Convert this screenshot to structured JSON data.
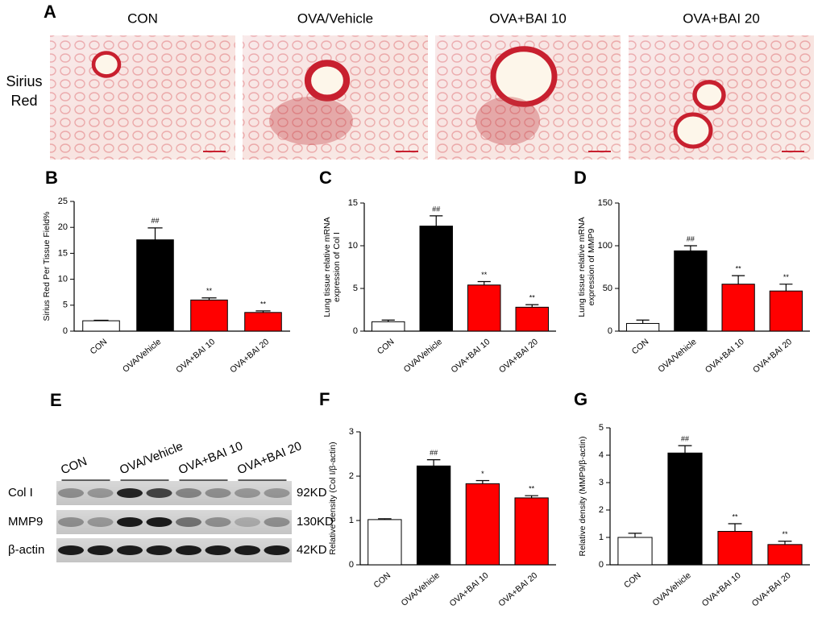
{
  "panel_a": {
    "label": "A",
    "stain": [
      "Sirius",
      "Red"
    ],
    "titles": [
      "CON",
      "OVA/Vehicle",
      "OVA+BAI 10",
      "OVA+BAI 20"
    ]
  },
  "panel_e": {
    "label": "E",
    "groups": [
      "CON",
      "OVA/Vehicle",
      "OVA+BAI 10",
      "OVA+BAI 20"
    ],
    "bands": [
      {
        "name": "Col I",
        "size": "92KD"
      },
      {
        "name": "MMP9",
        "size": "130KD"
      },
      {
        "name": "β-actin",
        "size": "42KD"
      }
    ]
  },
  "chart_data": [
    {
      "type": "bar",
      "panel": "B",
      "ylabel": "Sirius Red Per Tissue Field%",
      "categories": [
        "CON",
        "OVA/Vehicle",
        "OVA+BAI 10",
        "OVA+BAI 20"
      ],
      "values": [
        2.0,
        17.6,
        6.0,
        3.6
      ],
      "errors": [
        0.1,
        2.3,
        0.4,
        0.3
      ],
      "annotations": [
        null,
        "##",
        "**",
        "**"
      ],
      "colors": [
        "#ffffff",
        "#000000",
        "#ff0000",
        "#ff0000"
      ],
      "ylim": [
        0,
        25
      ],
      "yticks": [
        0,
        5,
        10,
        15,
        20,
        25
      ]
    },
    {
      "type": "bar",
      "panel": "C",
      "ylabel": [
        "Lung tissue relative mRNA",
        "expression of Col I"
      ],
      "categories": [
        "CON",
        "OVA/Vehicle",
        "OVA+BAI 10",
        "OVA+BAI 20"
      ],
      "values": [
        1.1,
        12.3,
        5.4,
        2.8
      ],
      "errors": [
        0.2,
        1.2,
        0.4,
        0.3
      ],
      "annotations": [
        null,
        "##",
        "**",
        "**"
      ],
      "colors": [
        "#ffffff",
        "#000000",
        "#ff0000",
        "#ff0000"
      ],
      "ylim": [
        0,
        15
      ],
      "yticks": [
        0,
        5,
        10,
        15
      ]
    },
    {
      "type": "bar",
      "panel": "D",
      "ylabel": [
        "Lung tissue relative mRNA",
        "expression of MMP9"
      ],
      "categories": [
        "CON",
        "OVA/Vehicle",
        "OVA+BAI 10",
        "OVA+BAI 20"
      ],
      "values": [
        9,
        94,
        55,
        47
      ],
      "errors": [
        4,
        6,
        10,
        8
      ],
      "annotations": [
        null,
        "##",
        "**",
        "**"
      ],
      "colors": [
        "#ffffff",
        "#000000",
        "#ff0000",
        "#ff0000"
      ],
      "ylim": [
        0,
        150
      ],
      "yticks": [
        0,
        50,
        100,
        150
      ]
    },
    {
      "type": "bar",
      "panel": "F",
      "ylabel": "Relative density (Col I/β-actin)",
      "categories": [
        "CON",
        "OVA/Vehicle",
        "OVA+BAI 10",
        "OVA+BAI 20"
      ],
      "values": [
        1.02,
        2.23,
        1.83,
        1.51
      ],
      "errors": [
        0.02,
        0.14,
        0.07,
        0.05
      ],
      "annotations": [
        null,
        "##",
        "*",
        "**"
      ],
      "colors": [
        "#ffffff",
        "#000000",
        "#ff0000",
        "#ff0000"
      ],
      "ylim": [
        0,
        3
      ],
      "yticks": [
        0,
        1,
        2,
        3
      ]
    },
    {
      "type": "bar",
      "panel": "G",
      "ylabel": "Relative density (MMP9/β-actin)",
      "categories": [
        "CON",
        "OVA/Vehicle",
        "OVA+BAI 10",
        "OVA+BAI 20"
      ],
      "values": [
        1.0,
        4.08,
        1.22,
        0.74
      ],
      "errors": [
        0.15,
        0.27,
        0.28,
        0.12
      ],
      "annotations": [
        null,
        "##",
        "**",
        "**"
      ],
      "colors": [
        "#ffffff",
        "#000000",
        "#ff0000",
        "#ff0000"
      ],
      "ylim": [
        0,
        5
      ],
      "yticks": [
        0,
        1,
        2,
        3,
        4,
        5
      ]
    }
  ]
}
